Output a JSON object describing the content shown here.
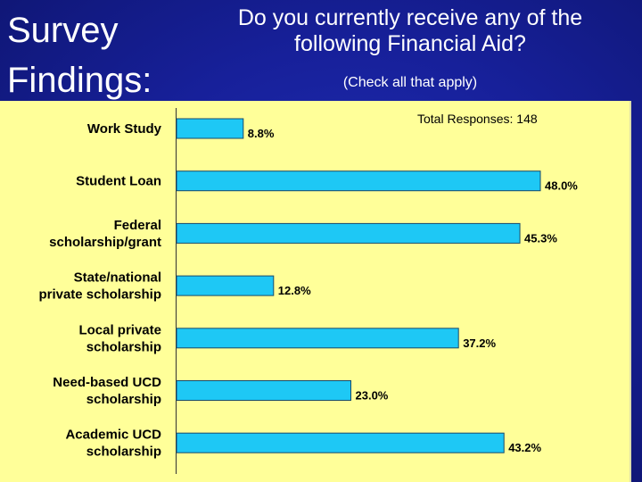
{
  "slide": {
    "title_lines": [
      "Survey",
      "Findings:"
    ],
    "question": "Do you currently receive any of the following Financial Aid?",
    "note": "(Check all that apply)"
  },
  "chart_data": {
    "type": "bar",
    "orientation": "horizontal",
    "categories": [
      [
        "Work Study"
      ],
      [
        "Student Loan"
      ],
      [
        "Federal",
        "scholarship/grant"
      ],
      [
        "State/national",
        "private scholarship"
      ],
      [
        "Local private",
        "scholarship"
      ],
      [
        "Need-based UCD",
        "scholarship"
      ],
      [
        "Academic UCD",
        "scholarship"
      ]
    ],
    "values": [
      8.8,
      48.0,
      45.3,
      12.8,
      37.2,
      23.0,
      43.2
    ],
    "value_labels": [
      "8.8%",
      "48.0%",
      "45.3%",
      "12.8%",
      "37.2%",
      "23.0%",
      "43.2%"
    ],
    "annotation": "Total Responses: 148",
    "xlim": [
      0,
      60
    ],
    "grid": false,
    "legend": "none",
    "bar_color": "#1ec8f5",
    "panel_color": "#ffff99"
  }
}
